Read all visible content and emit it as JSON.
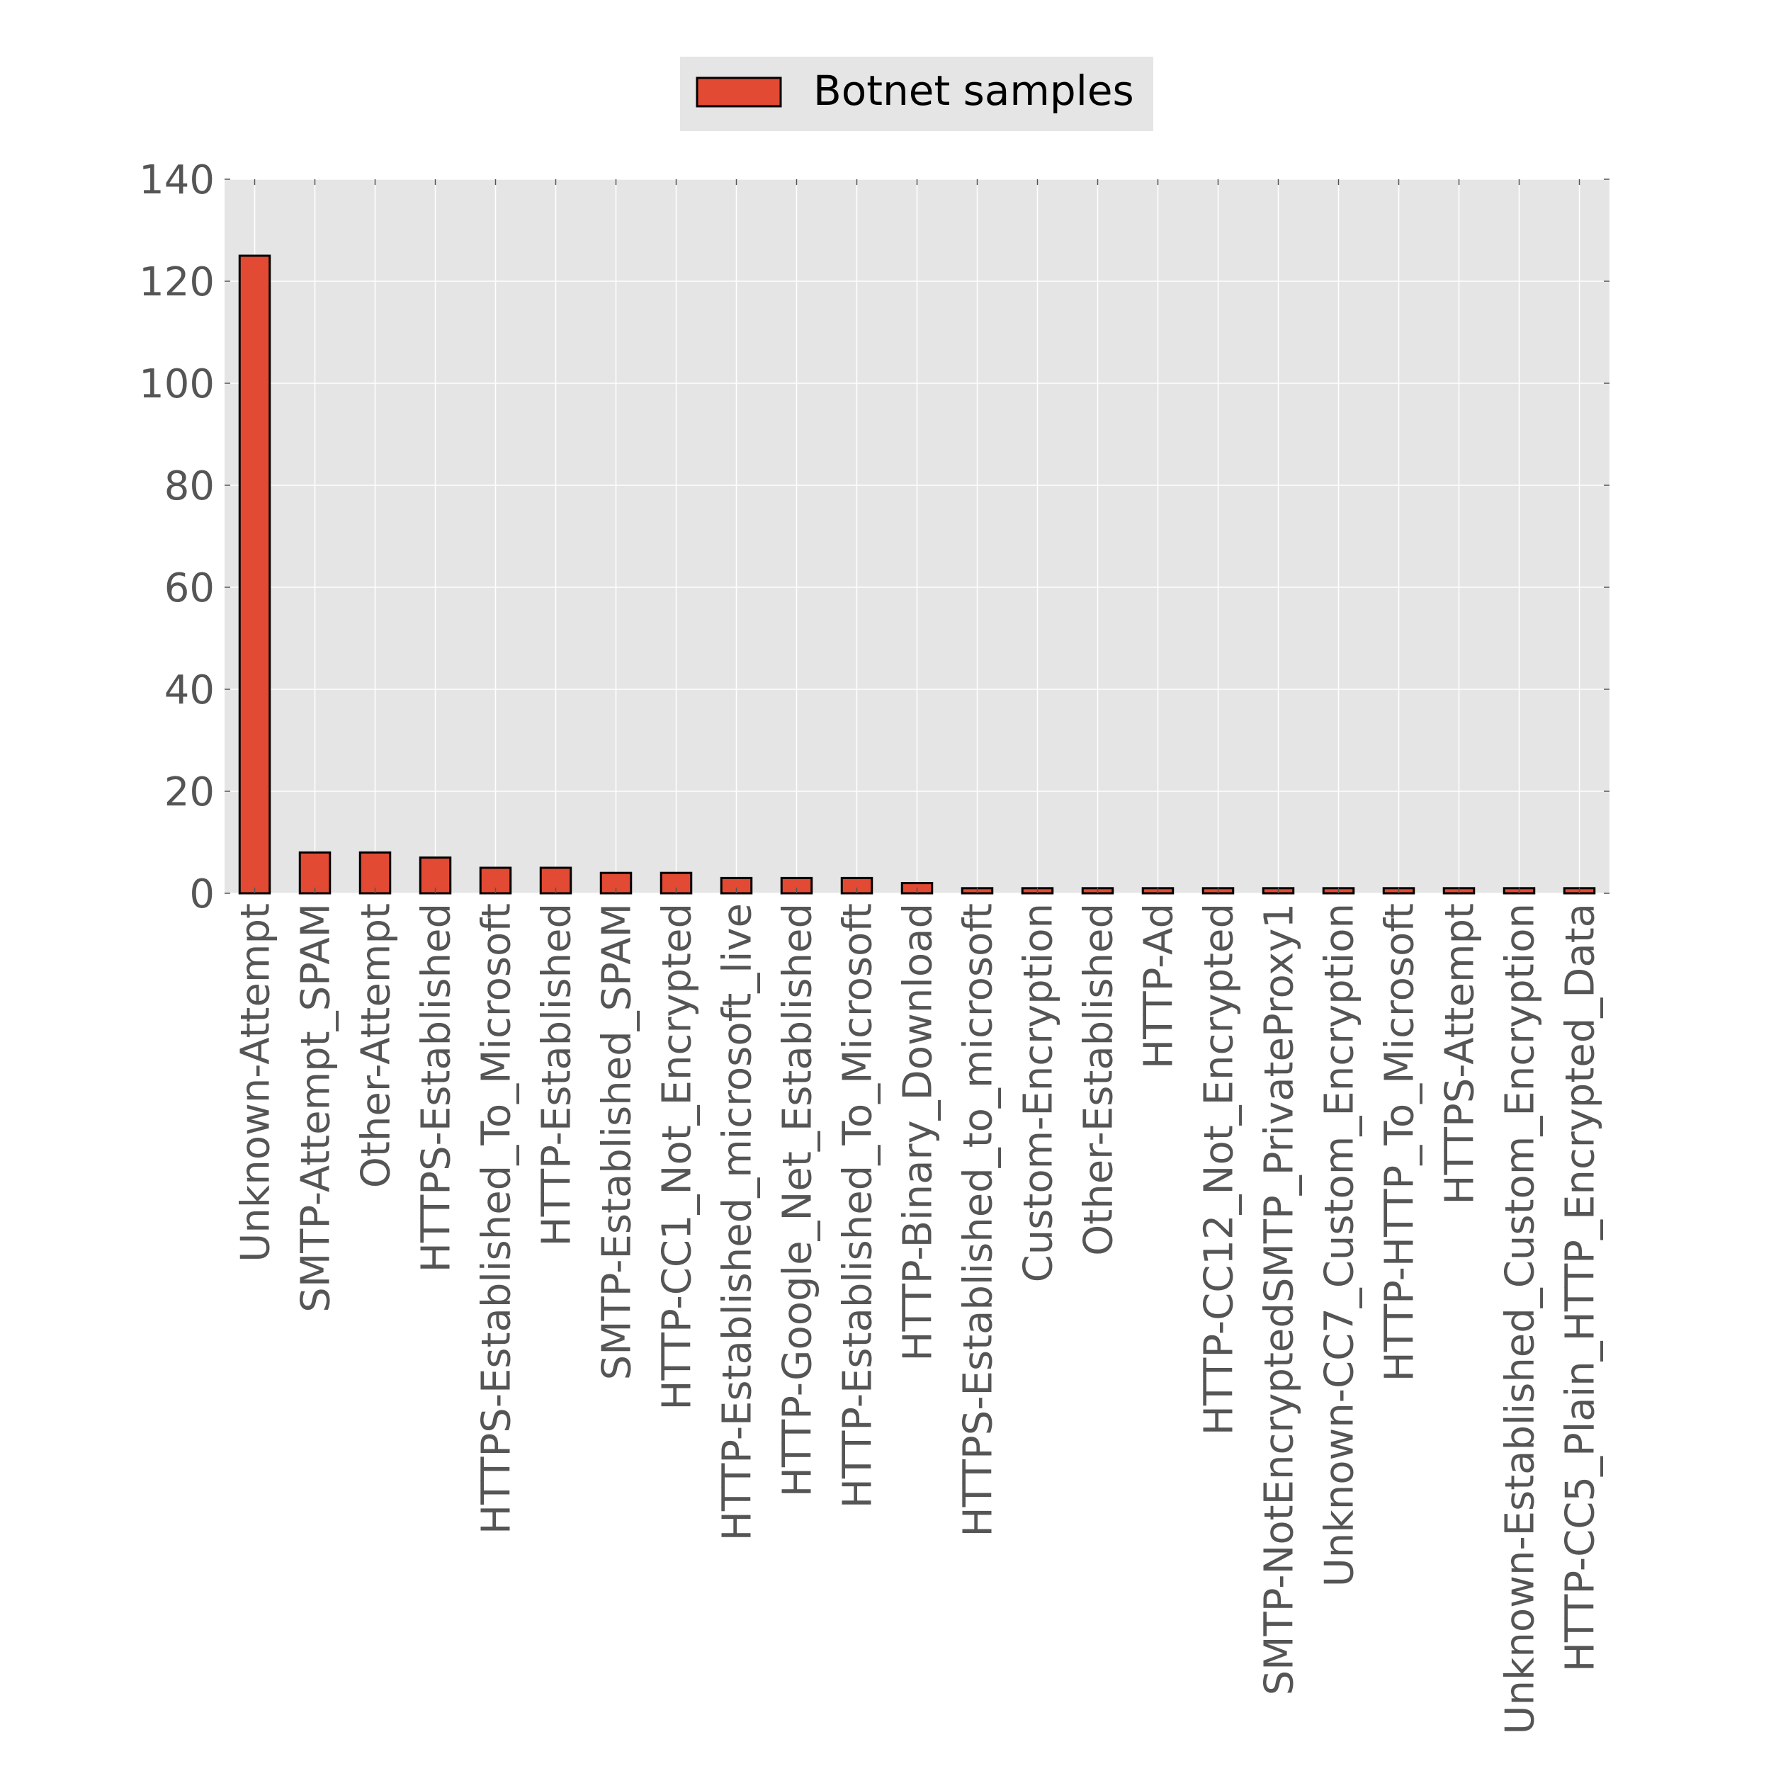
{
  "chart_data": {
    "type": "bar",
    "categories": [
      "Unknown-Attempt",
      "SMTP-Attempt_SPAM",
      "Other-Attempt",
      "HTTPS-Established",
      "HTTPS-Established_To_Microsoft",
      "HTTP-Established",
      "SMTP-Established_SPAM",
      "HTTP-CC1_Not_Encrypted",
      "HTTP-Established_microsoft_live",
      "HTTP-Google_Net_Established",
      "HTTP-Established_To_Microsoft",
      "HTTP-Binary_Download",
      "HTTPS-Established_to_microsoft",
      "Custom-Encryption",
      "Other-Established",
      "HTTP-Ad",
      "HTTP-CC12_Not_Encrypted",
      "SMTP-NotEncryptedSMTP_PrivateProxy1",
      "Unknown-CC7_Custom_Encryption",
      "HTTP-HTTP_To_Microsoft",
      "HTTPS-Attempt",
      "Unknown-Established_Custom_Encryption",
      "HTTP-CC5_Plain_HTTP_Encrypted_Data"
    ],
    "series": [
      {
        "name": "Botnet samples",
        "values": [
          125,
          8,
          8,
          7,
          5,
          5,
          4,
          4,
          3,
          3,
          3,
          2,
          1,
          1,
          1,
          1,
          1,
          1,
          1,
          1,
          1,
          1,
          1
        ]
      }
    ],
    "ylim": [
      0,
      140
    ],
    "yticks": [
      0,
      20,
      40,
      60,
      80,
      100,
      120,
      140
    ],
    "grid": true,
    "legend": "top-center",
    "colors": {
      "bar": "#E24A33",
      "plot_background": "#E5E5E5",
      "legend_background": "#E5E5E5"
    }
  }
}
